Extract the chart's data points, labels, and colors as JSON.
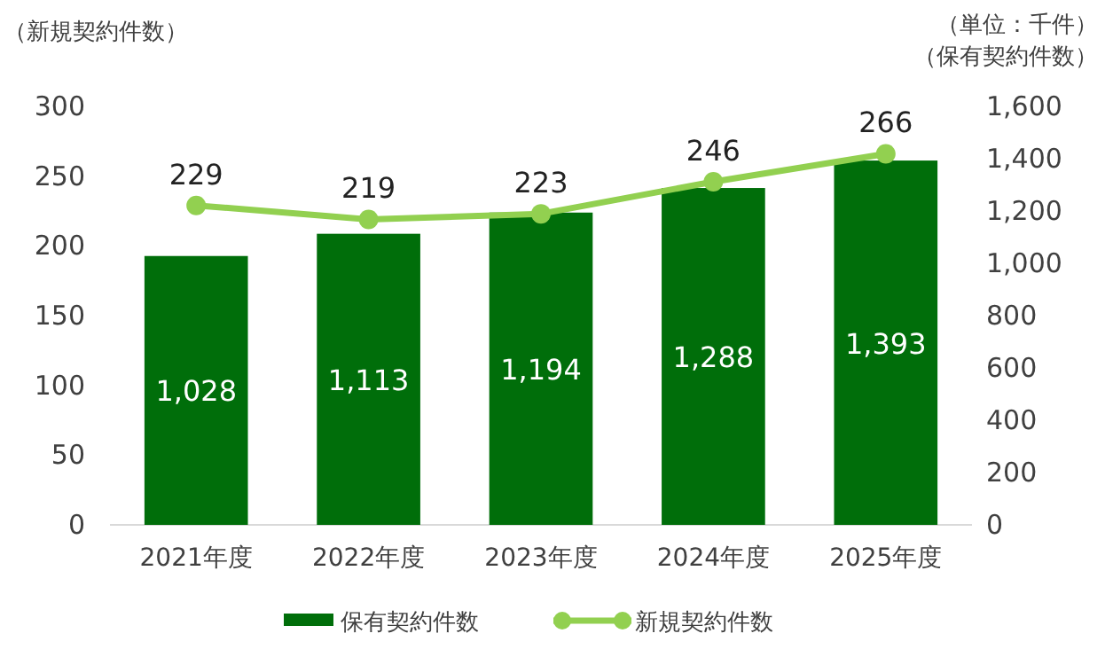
{
  "chart_data": {
    "type": "bar",
    "categories": [
      "2021年度",
      "2022年度",
      "2023年度",
      "2024年度",
      "2025年度"
    ],
    "ylabel": "（新規契約件数）",
    "y2label": "（単位：千件）（保有契約件数）",
    "ylim": [
      0,
      300
    ],
    "yticks": [
      0,
      50,
      100,
      150,
      200,
      250,
      300
    ],
    "y2lim": [
      0,
      1600
    ],
    "y2ticks": [
      0,
      200,
      400,
      600,
      800,
      {
        "value": 1000,
        "label": "1,000"
      },
      {
        "value": 1200,
        "label": "1,200"
      },
      {
        "value": 1400,
        "label": "1,400"
      },
      {
        "value": 1600,
        "label": "1,600"
      }
    ],
    "series": [
      {
        "name": "保有契約件数",
        "axis": "y2",
        "color": "#006e0a",
        "values": [
          1028,
          1113,
          1194,
          1288,
          1393
        ],
        "value_labels": [
          "1,028",
          "1,113",
          "1,194",
          "1,288",
          "1,393"
        ]
      },
      {
        "name": "新規契約件数",
        "type": "line",
        "color": "#92d050",
        "values": [
          229,
          219,
          223,
          246,
          266
        ],
        "value_labels": [
          "229",
          "219",
          "223",
          "246",
          "266"
        ],
        "marker": "circle",
        "line_style": "solid"
      }
    ],
    "grid": false,
    "legend": "bottom"
  }
}
